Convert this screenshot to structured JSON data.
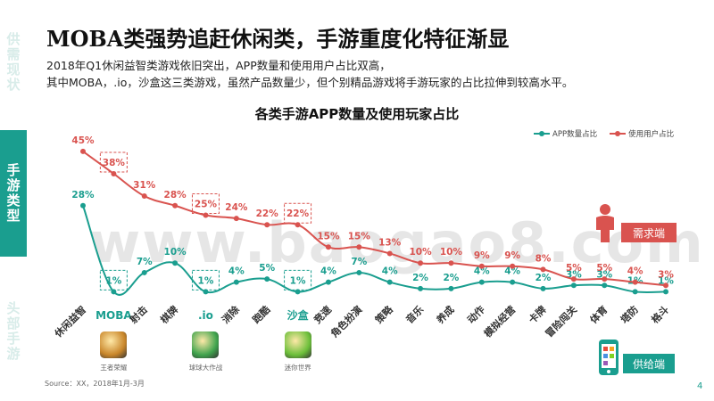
{
  "nav": {
    "sections": [
      {
        "label": "供需现状",
        "active": false
      },
      {
        "label": "手游类型",
        "active": true
      },
      {
        "label": "头部手游",
        "active": false
      }
    ]
  },
  "page_title": "MOBA类强势追赶休闲类，手游重度化特征渐显",
  "subtitle_lines": [
    "2018年Q1休闲益智类游戏依旧突出，APP数量和使用用户占比双高，",
    "其中MOBA，.io，沙盒这三类游戏，虽然产品数量少，但个别精品游戏将手游玩家的占比拉伸到较高水平。"
  ],
  "chart_data": {
    "type": "line",
    "title": "各类手游APP数量及使用玩家占比",
    "categories": [
      "休闲益智",
      "MOBA",
      "射击",
      "棋牌",
      ".io",
      "消除",
      "跑酷",
      "沙盒",
      "竞速",
      "角色扮演",
      "策略",
      "音乐",
      "养成",
      "动作",
      "模拟经营",
      "卡牌",
      "冒险闯关",
      "体育",
      "塔防",
      "格斗"
    ],
    "series": [
      {
        "name": "APP数量占比",
        "color": "#1a9e8f",
        "values": [
          28,
          1,
          7,
          10,
          1,
          4,
          5,
          1,
          4,
          7,
          4,
          2,
          2,
          4,
          4,
          2,
          3,
          3,
          1,
          1
        ],
        "labels": [
          "28%",
          "1%",
          "7%",
          "10%",
          "1%",
          "4%",
          "5%",
          "1%",
          "4%",
          "7%",
          "4%",
          "2%",
          "2%",
          "4%",
          "4%",
          "2%",
          "3%",
          "3%",
          "1%",
          "1%"
        ]
      },
      {
        "name": "使用用户占比",
        "color": "#d9534f",
        "values": [
          45,
          38,
          31,
          28,
          25,
          24,
          22,
          22,
          15,
          15,
          13,
          10,
          10,
          9,
          9,
          8,
          5,
          5,
          4,
          3
        ],
        "labels": [
          "45%",
          "38%",
          "31%",
          "28%",
          "25%",
          "24%",
          "22%",
          "22%",
          "15%",
          "15%",
          "13%",
          "10%",
          "10%",
          "9%",
          "9%",
          "8%",
          "5%",
          "5%",
          "4%",
          "3%"
        ]
      }
    ],
    "highlighted_categories": [
      "MOBA",
      ".io",
      "沙盒"
    ],
    "legend_position": "top-right"
  },
  "game_examples": [
    {
      "category": "MOBA",
      "caption": "王者荣耀",
      "color": "#c9862a"
    },
    {
      "category": ".io",
      "caption": "球球大作战",
      "color": "#3fa34d"
    },
    {
      "category": "沙盒",
      "caption": "迷你世界",
      "color": "#6cbf3a"
    }
  ],
  "watermark": "www.baogao8.com",
  "demand_label": "需求端",
  "supply_label": "供给端",
  "source": "Source：XX，2018年1月-3月",
  "page_number": "4"
}
